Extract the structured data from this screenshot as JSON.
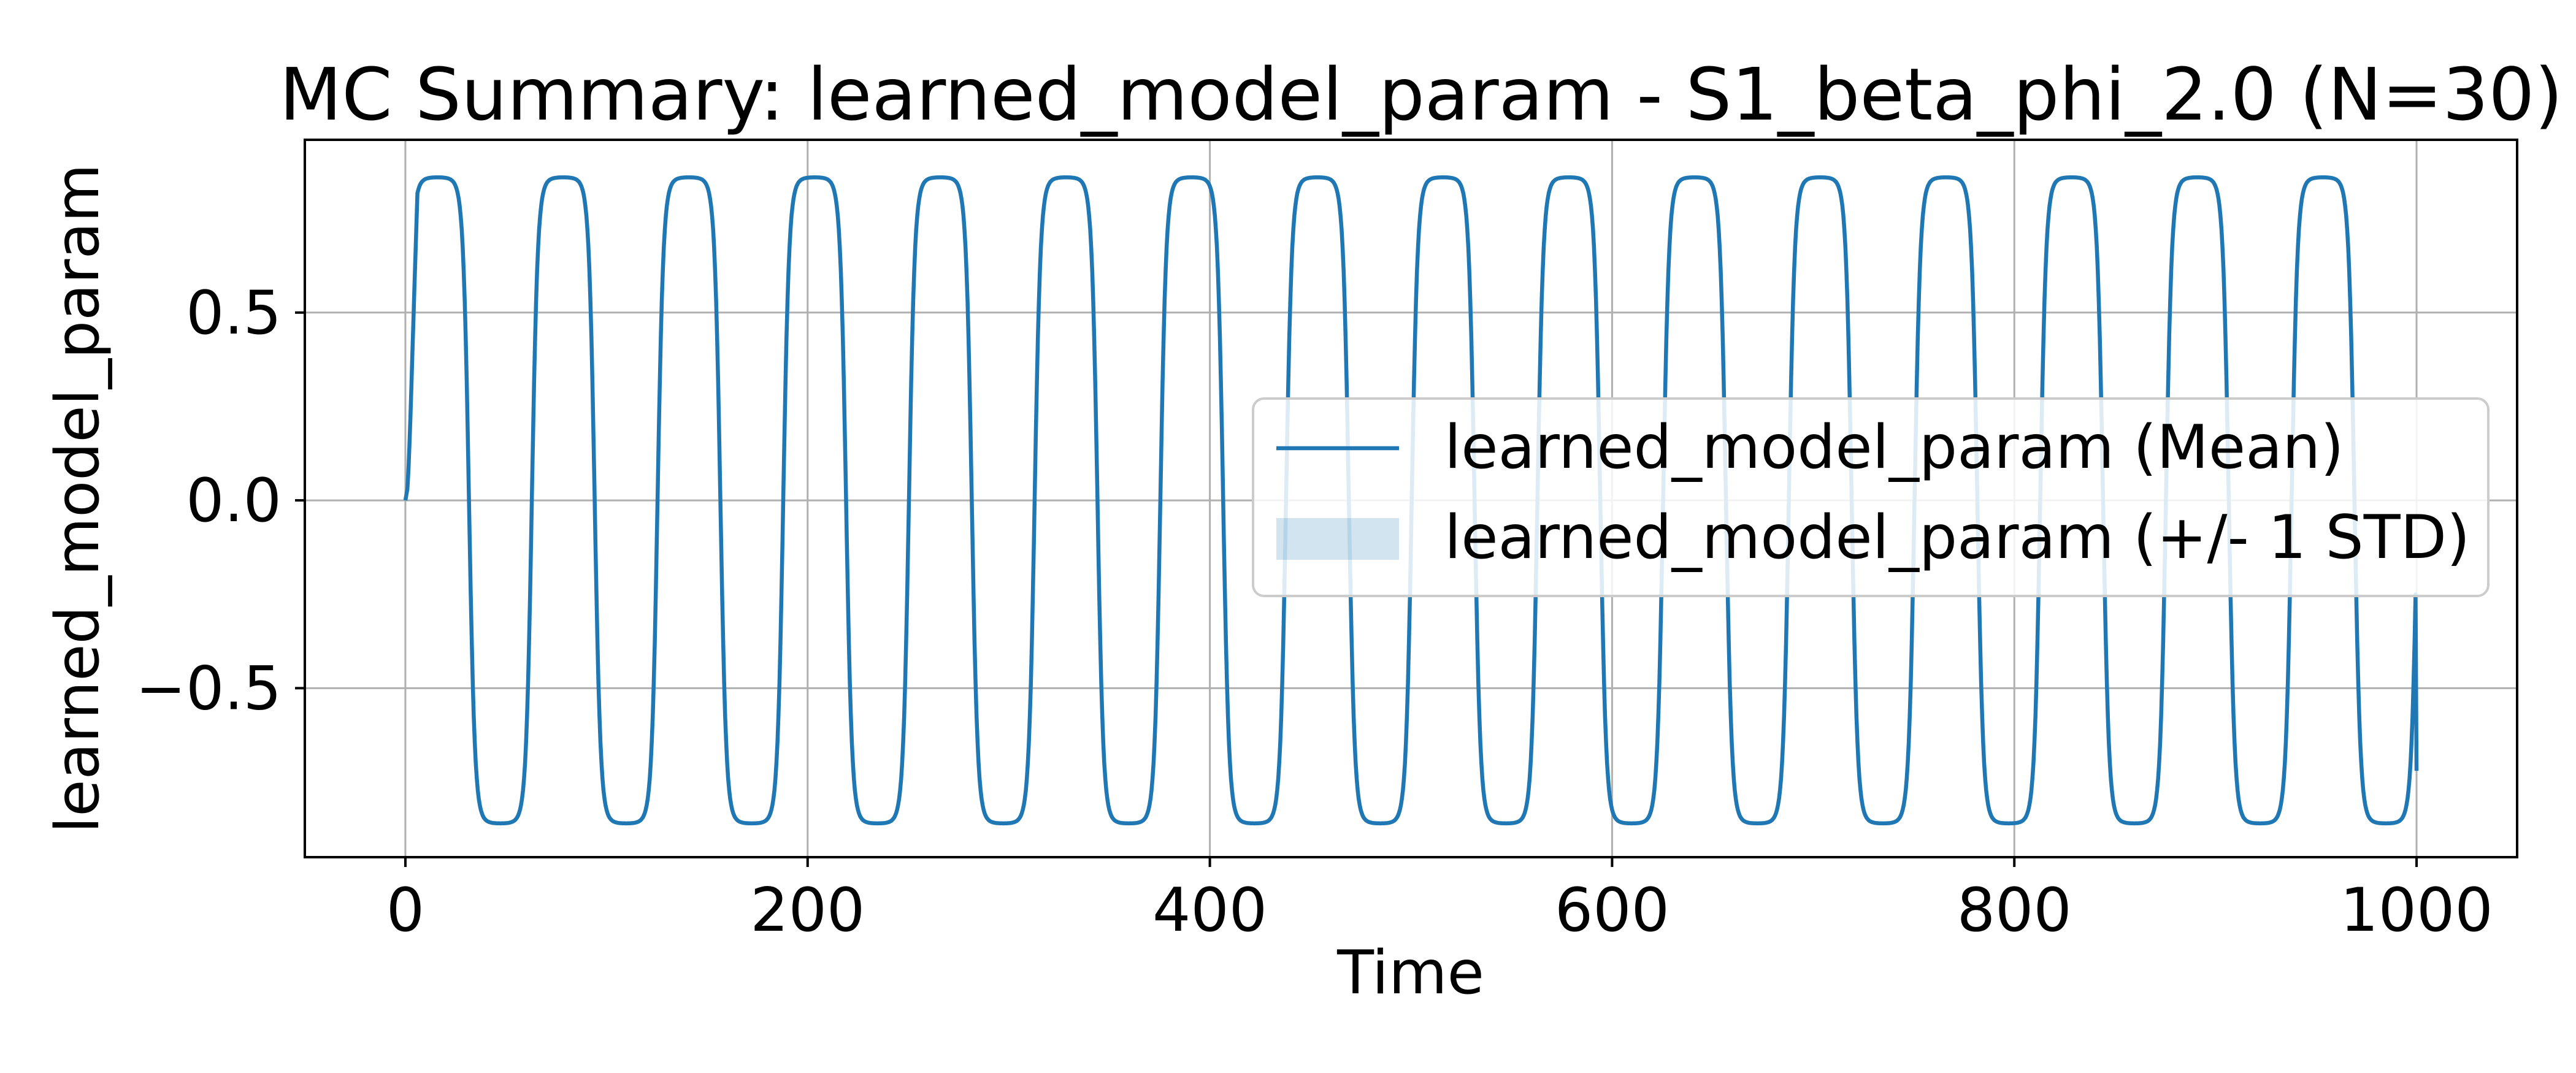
{
  "chart_data": {
    "type": "line",
    "title": "MC Summary: learned_model_param - S1_beta_phi_2.0 (N=30)",
    "xlabel": "Time",
    "ylabel": "learned_model_param",
    "xlim": [
      -50,
      1050
    ],
    "ylim": [
      -0.95,
      0.96
    ],
    "xticks": [
      0,
      200,
      400,
      600,
      800,
      1000
    ],
    "xtick_labels": [
      "0",
      "200",
      "400",
      "600",
      "800",
      "1000"
    ],
    "yticks": [
      0.5,
      0.0,
      -0.5
    ],
    "ytick_labels": [
      "0.5",
      "0.0",
      "−0.5"
    ],
    "grid": true,
    "legend_position": "center-right",
    "series": [
      {
        "name": "learned_model_param (Mean)",
        "kind": "line",
        "color": "#1f77b4",
        "curve": {
          "waveform": "saturated sine",
          "x_start": 0,
          "x_end": 1000,
          "period": 62.5,
          "amplitude": 0.86,
          "saturation_level": 0.86,
          "first_peak_x": 16,
          "end_value": -0.72
        }
      },
      {
        "name": "learned_model_param (+/- 1 STD)",
        "kind": "band",
        "color": "#1f77b4",
        "opacity": 0.2
      }
    ]
  }
}
